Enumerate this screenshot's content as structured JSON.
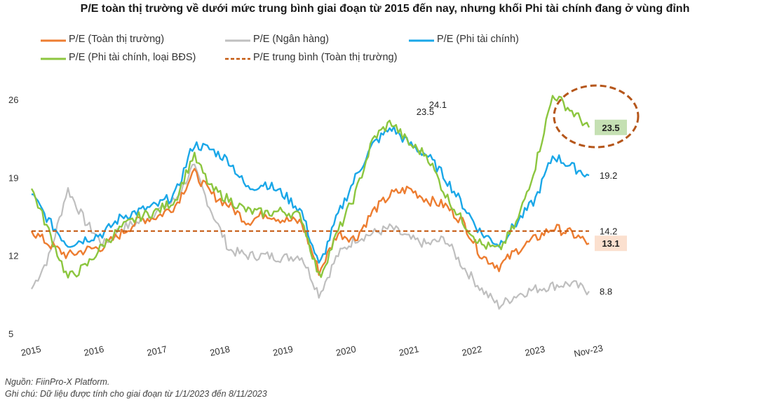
{
  "title": "P/E toàn thị trường về dưới mức trung bình giai đoạn từ 2015 đến nay, nhưng khối Phi tài chính đang ở vùng đỉnh",
  "legend": [
    {
      "label": "P/E (Toàn thị trường)",
      "color": "#ed7d31",
      "dash": false
    },
    {
      "label": "P/E (Ngân hàng)",
      "color": "#bfbfbf",
      "dash": false
    },
    {
      "label": "P/E (Phi tài chính)",
      "color": "#1aa7e8",
      "dash": false
    },
    {
      "label": "P/E (Phi tài chính, loại BĐS)",
      "color": "#8cc63f",
      "dash": false
    },
    {
      "label": "P/E trung bình (Toàn thị trường)",
      "color": "#c55a11",
      "dash": true
    }
  ],
  "footer": {
    "source": "Nguồn: FiinPro-X Platform.",
    "note": "Ghi chú: Dữ liệu được tính cho giai đoạn từ 1/1/2023 đến 8/11/2023"
  },
  "chart_data": {
    "type": "line",
    "x_labels": [
      "2015",
      "2016",
      "2017",
      "2018",
      "2019",
      "2020",
      "2021",
      "2022",
      "2023",
      "Nov-23"
    ],
    "y_ticks": [
      5,
      12,
      19,
      26
    ],
    "ylim": [
      5,
      27
    ],
    "grid": false,
    "legend_position": "top-left",
    "series": [
      {
        "name": "P/E (Toàn thị trường)",
        "color": "#ed7d31",
        "values": [
          14.2,
          13.0,
          12.0,
          12.5,
          12.8,
          14.0,
          15.2,
          15.5,
          16.5,
          19.5,
          17.5,
          16.5,
          15.0,
          15.8,
          15.2,
          15.0,
          10.5,
          14.0,
          13.5,
          16.0,
          17.5,
          18.0,
          17.0,
          16.5,
          15.0,
          12.0,
          11.0,
          12.5,
          13.5,
          14.5,
          14.0,
          13.1
        ]
      },
      {
        "name": "P/E (Ngân hàng)",
        "color": "#bfbfbf",
        "values": [
          9.0,
          12.0,
          18.0,
          15.0,
          13.0,
          14.5,
          15.0,
          16.0,
          17.0,
          20.0,
          16.0,
          12.5,
          12.0,
          12.0,
          11.8,
          12.0,
          8.5,
          12.0,
          13.5,
          14.0,
          14.5,
          13.5,
          13.0,
          13.5,
          11.0,
          9.0,
          7.5,
          8.5,
          9.0,
          9.3,
          9.5,
          8.8
        ]
      },
      {
        "name": "P/E (Phi tài chính)",
        "color": "#1aa7e8",
        "values": [
          17.5,
          15.0,
          13.0,
          13.5,
          14.0,
          15.5,
          16.0,
          16.5,
          17.5,
          22.0,
          21.5,
          20.5,
          18.0,
          18.5,
          17.5,
          16.0,
          11.0,
          15.5,
          19.0,
          22.0,
          23.5,
          22.0,
          21.0,
          19.0,
          16.5,
          14.0,
          13.0,
          15.0,
          17.0,
          21.0,
          20.0,
          19.2
        ]
      },
      {
        "name": "P/E (Phi tài chính, loại BĐS)",
        "color": "#8cc63f",
        "values": [
          18.0,
          14.0,
          10.0,
          11.0,
          13.0,
          14.5,
          15.5,
          16.0,
          17.0,
          21.0,
          18.0,
          17.0,
          16.0,
          15.8,
          16.0,
          15.5,
          10.0,
          14.0,
          17.5,
          22.5,
          24.0,
          22.0,
          21.0,
          17.5,
          15.0,
          13.0,
          12.5,
          15.0,
          20.0,
          26.5,
          25.0,
          23.5
        ]
      },
      {
        "name": "P/E trung bình (Toàn thị trường)",
        "color": "#c55a11",
        "dashed": true,
        "values": [
          14.2,
          14.2
        ]
      }
    ],
    "annotations": [
      {
        "text": "24.1",
        "x_year": 2021.45,
        "value": 24.1
      },
      {
        "text": "23.5",
        "x_year": 2021.25,
        "value": 23.5
      }
    ],
    "end_labels": [
      {
        "text": "23.5",
        "value": 23.5,
        "boxed": true,
        "box_color": "#c5e0b3",
        "bold": true
      },
      {
        "text": "19.2",
        "value": 19.2,
        "boxed": false
      },
      {
        "text": "14.2",
        "value": 14.2,
        "boxed": false
      },
      {
        "text": "13.1",
        "value": 13.1,
        "boxed": true,
        "box_color": "#fbe0cf",
        "bold": true
      },
      {
        "text": "8.8",
        "value": 8.8,
        "boxed": false
      }
    ]
  }
}
